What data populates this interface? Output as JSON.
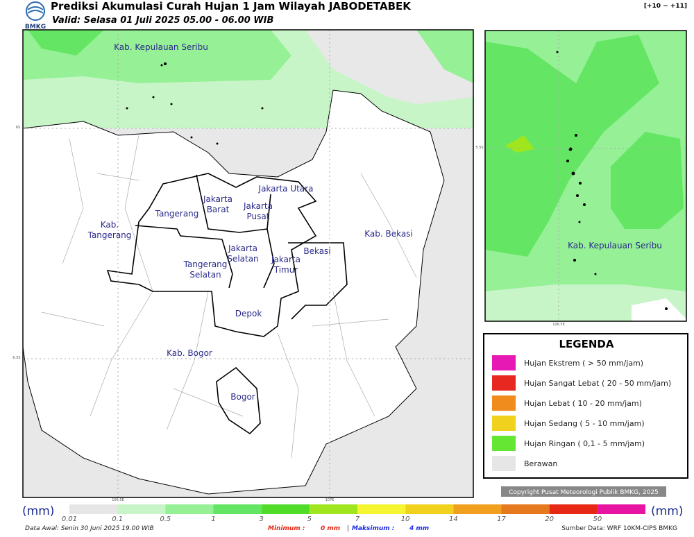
{
  "header": {
    "logo": "BMKG",
    "title": "Prediksi Akumulasi Curah Hujan 1 Jam Wilayah JABODETABEK",
    "subtitle": "Valid: Selasa 01 Juli 2025 05.00 - 06.00 WIB",
    "range": "[+10 ~ +11]"
  },
  "map": {
    "ticks": {
      "lat1": "6S",
      "lat2": "6.5S",
      "lon1": "106.5E",
      "lon2": "107E"
    },
    "labels": {
      "seribu": [
        "Kab. Kepulauan Seribu"
      ],
      "jakut": [
        "Jakarta Utara"
      ],
      "jakbar": [
        "Jakarta",
        "Barat"
      ],
      "jakpus": [
        "Jakarta",
        "Pusat"
      ],
      "tangerang": [
        "Tangerang"
      ],
      "kabtangerang": [
        "Kab.",
        "Tangerang"
      ],
      "jaksel": [
        "Jakarta",
        "Selatan"
      ],
      "jaktim": [
        "Jakarta",
        "Timur"
      ],
      "bekasi": [
        "Bekasi"
      ],
      "kabbekasi": [
        "Kab. Bekasi"
      ],
      "tangsel": [
        "Tangerang",
        "Selatan"
      ],
      "depok": [
        "Depok"
      ],
      "kabbogor": [
        "Kab. Bogor"
      ],
      "bogor": [
        "Bogor"
      ]
    }
  },
  "inset": {
    "label": "Kab. Kepulauan Seribu",
    "lat": "5.5S",
    "lon": "106.5E"
  },
  "legend": {
    "title": "LEGENDA",
    "items": [
      {
        "label": "Hujan Ekstrem ( > 50 mm/jam)",
        "color": "#e619b4"
      },
      {
        "label": "Hujan Sangat Lebat ( 20 - 50 mm/jam)",
        "color": "#e62820"
      },
      {
        "label": "Hujan Lebat ( 10 - 20 mm/jam)",
        "color": "#f08c1e"
      },
      {
        "label": "Hujan Sedang ( 5 - 10 mm/jam)",
        "color": "#f0d21e"
      },
      {
        "label": "Hujan Ringan ( 0,1 - 5 mm/jam)",
        "color": "#64e632"
      },
      {
        "label": "Berawan",
        "color": "#e6e6e6"
      }
    ]
  },
  "copyright": "Copyright Pusat Meteorologi Publik BMKG, 2025",
  "colorbar": {
    "unit": "(mm)",
    "labels": [
      "0.01",
      "0.1",
      "0.5",
      "1",
      "3",
      "5",
      "7",
      "10",
      "14",
      "17",
      "20",
      "50"
    ],
    "colors": [
      "#e6e6e6",
      "#c8f5c8",
      "#96f096",
      "#64e664",
      "#50dc28",
      "#a0e61e",
      "#f5f532",
      "#f0d21e",
      "#f0a01e",
      "#e6781e",
      "#e62814",
      "#e614a0"
    ]
  },
  "footer": {
    "initial": "Data Awal: Senin 30 Juni 2025 19.00 WIB",
    "min_label": "Minimum :",
    "min_value": "0 mm",
    "sep": "|",
    "max_label": "Maksimum :",
    "max_value": "4 mm",
    "source": "Sumber Data: WRF 10KM-CIPS BMKG"
  }
}
